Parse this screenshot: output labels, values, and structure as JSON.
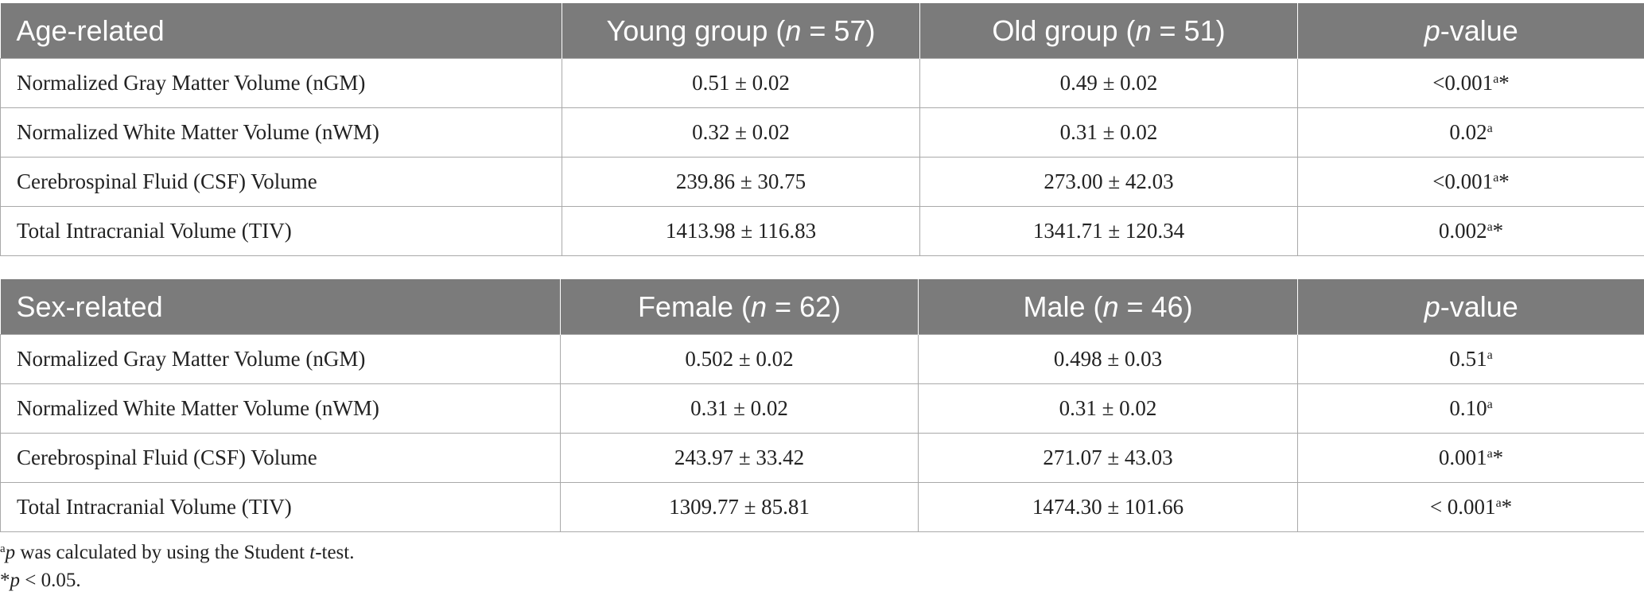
{
  "tables": [
    {
      "header": {
        "label": "Age-related",
        "col1": {
          "pre": "Young group (",
          "n": "n",
          "post": " = 57)"
        },
        "col2": {
          "pre": "Old group (",
          "n": "n",
          "post": " = 51)"
        },
        "col3": {
          "p": "p",
          "rest": "-value"
        }
      },
      "rows": [
        {
          "measure": "Normalized Gray Matter Volume (nGM)",
          "v1": "0.51 ± 0.02",
          "v2": "0.49 ± 0.02",
          "p": "<0.001",
          "sup": "a",
          "star": "*"
        },
        {
          "measure": "Normalized White Matter Volume (nWM)",
          "v1": "0.32 ± 0.02",
          "v2": "0.31 ± 0.02",
          "p": "0.02",
          "sup": "a",
          "star": ""
        },
        {
          "measure": "Cerebrospinal Fluid (CSF) Volume",
          "v1": "239.86 ± 30.75",
          "v2": "273.00 ± 42.03",
          "p": "<0.001",
          "sup": "a",
          "star": "*"
        },
        {
          "measure": "Total Intracranial Volume (TIV)",
          "v1": "1413.98 ± 116.83",
          "v2": "1341.71 ± 120.34",
          "p": "0.002",
          "sup": "a",
          "star": "*"
        }
      ]
    },
    {
      "header": {
        "label": "Sex-related",
        "col1": {
          "pre": "Female (",
          "n": "n",
          "post": " = 62)"
        },
        "col2": {
          "pre": "Male (",
          "n": "n",
          "post": " = 46)"
        },
        "col3": {
          "p": "p",
          "rest": "-value"
        }
      },
      "rows": [
        {
          "measure": "Normalized Gray Matter Volume (nGM)",
          "v1": "0.502 ± 0.02",
          "v2": "0.498 ± 0.03",
          "p": "0.51",
          "sup": "a",
          "star": ""
        },
        {
          "measure": "Normalized White Matter Volume (nWM)",
          "v1": "0.31 ± 0.02",
          "v2": "0.31 ± 0.02",
          "p": "0.10",
          "sup": "a",
          "star": ""
        },
        {
          "measure": "Cerebrospinal Fluid (CSF) Volume",
          "v1": "243.97 ± 33.42",
          "v2": "271.07 ± 43.03",
          "p": "0.001",
          "sup": "a",
          "star": "*"
        },
        {
          "measure": "Total Intracranial Volume (TIV)",
          "v1": "1309.77 ± 85.81",
          "v2": "1474.30 ± 101.66",
          "p": "< 0.001",
          "sup": "a",
          "star": "*"
        }
      ]
    }
  ],
  "footnotes": {
    "a": {
      "mark": "a",
      "p": "p",
      "text1": " was calculated by using the Student ",
      "t": "t",
      "text2": "-test."
    },
    "star": {
      "mark": "*",
      "p": "p",
      "text": " < 0.05."
    }
  }
}
